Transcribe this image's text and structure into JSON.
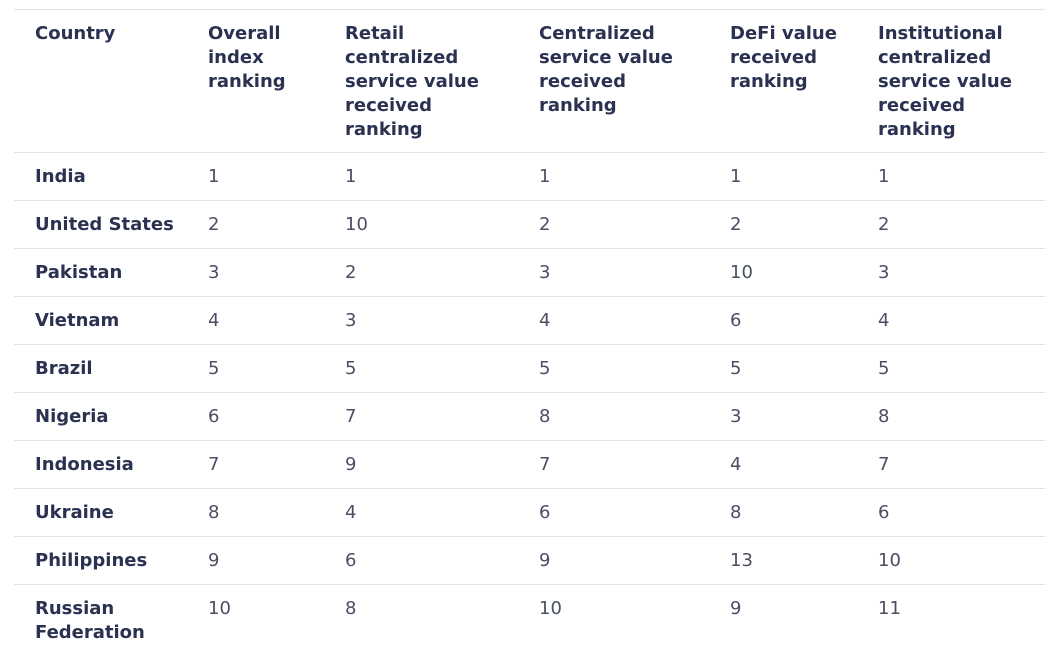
{
  "table": {
    "columns": [
      "Country",
      "Overall index ranking",
      "Retail centralized service value received ranking",
      "Centralized service value received ranking",
      "DeFi value received ranking",
      "Institutional centralized service value received ranking"
    ],
    "rows": [
      [
        "India",
        1,
        1,
        1,
        1,
        1
      ],
      [
        "United States",
        2,
        10,
        2,
        2,
        2
      ],
      [
        "Pakistan",
        3,
        2,
        3,
        10,
        3
      ],
      [
        "Vietnam",
        4,
        3,
        4,
        6,
        4
      ],
      [
        "Brazil",
        5,
        5,
        5,
        5,
        5
      ],
      [
        "Nigeria",
        6,
        7,
        8,
        3,
        8
      ],
      [
        "Indonesia",
        7,
        9,
        7,
        4,
        7
      ],
      [
        "Ukraine",
        8,
        4,
        6,
        8,
        6
      ],
      [
        "Philippines",
        9,
        6,
        9,
        13,
        10
      ],
      [
        "Russian Federation",
        10,
        8,
        10,
        9,
        11
      ]
    ]
  }
}
